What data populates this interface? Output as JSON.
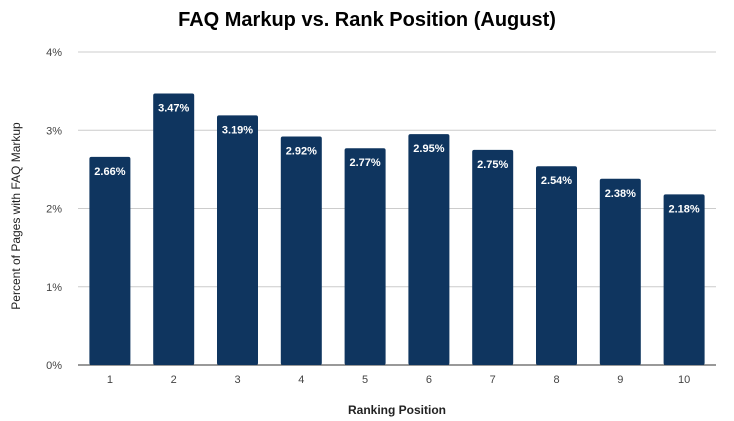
{
  "colors": {
    "bar": "#0f355f",
    "grid": "#cccccc",
    "text": "#222222"
  },
  "chart_data": {
    "type": "bar",
    "title": "FAQ Markup vs. Rank Position (August)",
    "xlabel": "Ranking Position",
    "ylabel": "Percent of Pages with FAQ Markup",
    "categories": [
      "1",
      "2",
      "3",
      "4",
      "5",
      "6",
      "7",
      "8",
      "9",
      "10"
    ],
    "values": [
      2.66,
      3.47,
      3.19,
      2.92,
      2.77,
      2.95,
      2.75,
      2.54,
      2.38,
      2.18
    ],
    "value_labels": [
      "2.66%",
      "3.47%",
      "3.19%",
      "2.92%",
      "2.77%",
      "2.95%",
      "2.75%",
      "2.54%",
      "2.38%",
      "2.18%"
    ],
    "ylim": [
      0,
      4
    ],
    "yticks": [
      0,
      1,
      2,
      3,
      4
    ],
    "ytick_labels": [
      "0%",
      "1%",
      "2%",
      "3%",
      "4%"
    ],
    "grid": true,
    "legend": "none"
  }
}
